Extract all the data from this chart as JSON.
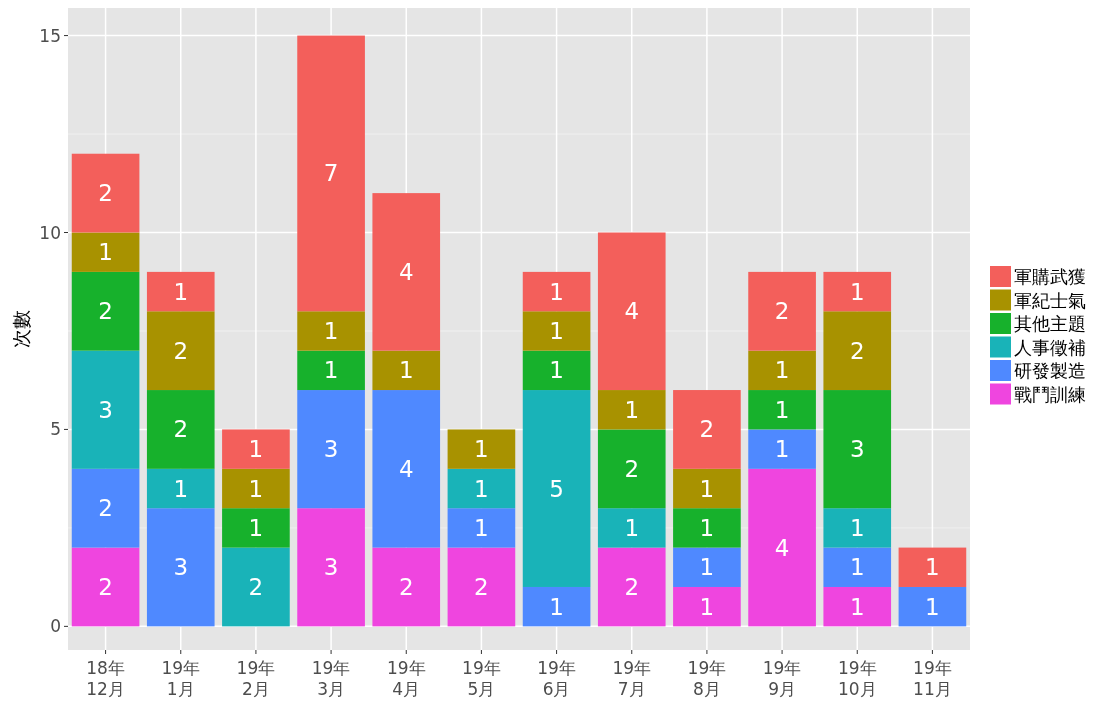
{
  "chart_data": {
    "type": "bar",
    "stacked": true,
    "ylabel": "次數",
    "categories": [
      "18年\n12月",
      "19年\n1月",
      "19年\n2月",
      "19年\n3月",
      "19年\n4月",
      "19年\n5月",
      "19年\n6月",
      "19年\n7月",
      "19年\n8月",
      "19年\n9月",
      "19年\n10月",
      "19年\n11月"
    ],
    "series": [
      {
        "name": "戰鬥訓練",
        "color": "#ef45df",
        "values": [
          2,
          null,
          null,
          3,
          2,
          2,
          null,
          2,
          1,
          4,
          1,
          null
        ]
      },
      {
        "name": "研發製造",
        "color": "#4f89ff",
        "values": [
          2,
          3,
          null,
          3,
          4,
          1,
          1,
          null,
          1,
          1,
          1,
          1
        ]
      },
      {
        "name": "人事徵補",
        "color": "#19b3b8",
        "values": [
          3,
          1,
          2,
          null,
          null,
          1,
          5,
          1,
          null,
          null,
          1,
          null
        ]
      },
      {
        "name": "其他主題",
        "color": "#17b12c",
        "values": [
          2,
          2,
          1,
          1,
          null,
          null,
          1,
          2,
          1,
          1,
          3,
          null
        ]
      },
      {
        "name": "軍紀士氣",
        "color": "#a89200",
        "values": [
          1,
          2,
          1,
          1,
          1,
          1,
          1,
          1,
          1,
          1,
          2,
          null
        ]
      },
      {
        "name": "軍購武獲",
        "color": "#f35f5b",
        "values": [
          2,
          1,
          1,
          7,
          4,
          null,
          1,
          4,
          2,
          2,
          1,
          1
        ]
      }
    ],
    "ylim": [
      -0.6,
      15.7
    ],
    "yticks": [
      0,
      5,
      10,
      15
    ],
    "grid": true,
    "legend": "right",
    "data_labels": true
  }
}
